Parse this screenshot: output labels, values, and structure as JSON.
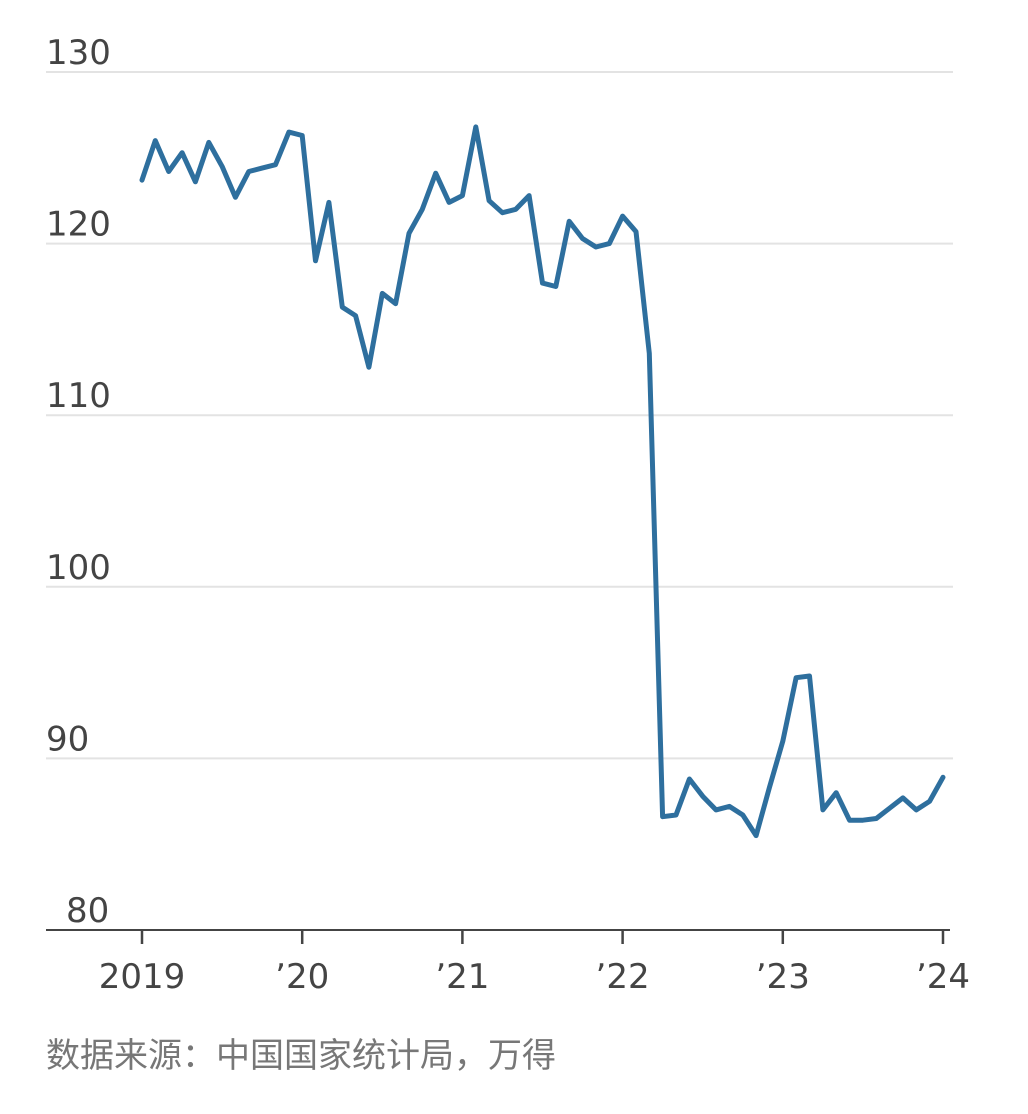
{
  "chart_data": {
    "type": "line",
    "title": "",
    "xlabel": "",
    "ylabel": "",
    "ylim": [
      80,
      130
    ],
    "yticks": [
      80,
      90,
      100,
      110,
      120,
      130
    ],
    "ytick_labels": [
      "80",
      "90",
      "100",
      "110",
      "120",
      "130"
    ],
    "xticks": [
      "2019",
      "’20",
      "’21",
      "’22",
      "’23",
      "’24"
    ],
    "grid": true,
    "color": "#2e6f9e",
    "series": [
      {
        "start": "2019-01",
        "values": [
          123.7,
          126.0,
          124.2,
          125.3,
          123.6,
          125.9,
          124.5,
          122.7,
          124.2,
          124.4,
          124.6,
          126.5,
          126.3,
          119.0,
          122.4,
          116.3,
          115.8,
          112.8,
          117.1,
          116.5,
          120.6,
          122.0,
          124.1,
          122.4,
          122.8,
          126.8,
          122.5,
          121.8,
          122.0,
          122.8,
          117.7,
          117.5,
          121.3,
          120.3,
          119.8,
          120.0,
          121.6,
          120.7,
          113.6,
          86.6,
          86.7,
          88.8,
          87.8,
          87.0,
          87.2,
          86.7,
          85.5,
          88.3,
          91.0,
          94.7,
          94.8,
          87.0,
          88.0,
          86.4,
          86.4,
          86.5,
          87.1,
          87.7,
          87.0,
          87.5,
          88.9
        ]
      }
    ]
  },
  "source": "数据来源：中国国家统计局，万得"
}
